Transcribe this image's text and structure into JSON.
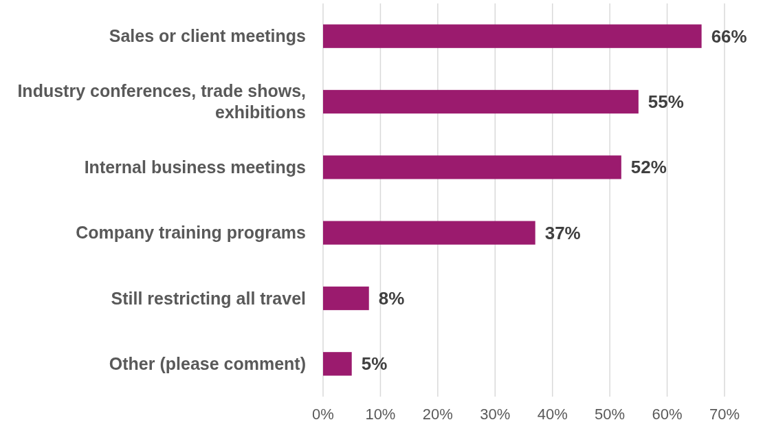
{
  "chart_data": {
    "type": "bar",
    "orientation": "horizontal",
    "categories": [
      "Sales or client meetings",
      "Industry conferences, trade shows, exhibitions",
      "Internal business meetings",
      "Company training programs",
      "Still restricting all travel",
      "Other (please comment)"
    ],
    "values": [
      66,
      55,
      52,
      37,
      8,
      5
    ],
    "value_labels": [
      "66%",
      "55%",
      "52%",
      "37%",
      "8%",
      "5%"
    ],
    "color": "#9b1b6e",
    "xlim": [
      0,
      70
    ],
    "xticks": [
      {
        "value": 0,
        "label": "0%"
      },
      {
        "value": 10,
        "label": "10%"
      },
      {
        "value": 20,
        "label": "20%"
      },
      {
        "value": 30,
        "label": "30%"
      },
      {
        "value": 40,
        "label": "40%"
      },
      {
        "value": 50,
        "label": "50%"
      },
      {
        "value": 60,
        "label": "60%"
      },
      {
        "value": 70,
        "label": "70%"
      }
    ],
    "grid": "x"
  }
}
